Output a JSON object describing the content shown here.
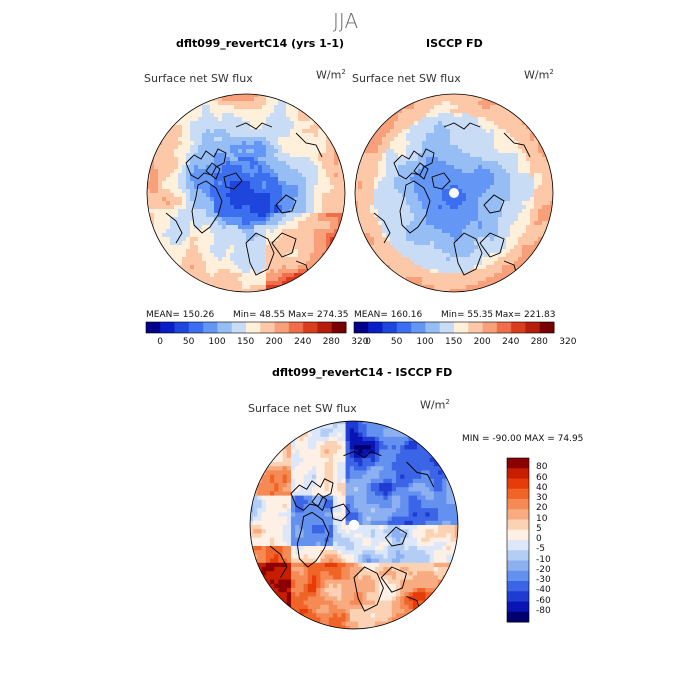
{
  "title": "JJA",
  "panels": [
    {
      "title": "dflt099_revertC14 (yrs 1-1)",
      "subtitle": "Surface net SW flux",
      "units": "W/m",
      "units_sup": "2",
      "stats": {
        "mean_label": "MEAN= 150.26",
        "min_label": "Min=  48.55",
        "max_label": "Max= 274.35"
      }
    },
    {
      "title": "ISCCP FD",
      "subtitle": "Surface net SW flux",
      "units": "W/m",
      "units_sup": "2",
      "stats": {
        "mean_label": "MEAN= 160.16",
        "min_label": "Min=  55.35",
        "max_label": "Max= 221.83"
      }
    },
    {
      "title": "dflt099_revertC14 - ISCCP FD",
      "subtitle": "Surface net SW flux",
      "units": "W/m",
      "units_sup": "2",
      "stats": {
        "minmax_label": "MIN = -90.00 MAX =  74.95"
      }
    }
  ],
  "colorbar_top": {
    "tick_labels": [
      "0",
      "50",
      "100",
      "150",
      "200",
      "240",
      "280",
      "320"
    ],
    "colors": [
      "#00008b",
      "#0a1ec8",
      "#1e46dc",
      "#3c6ef0",
      "#6496f5",
      "#96bef5",
      "#c8dcf5",
      "#fff0dc",
      "#fcc8a8",
      "#f8a07a",
      "#f06e4c",
      "#dc3c1e",
      "#b41e0a",
      "#780000"
    ]
  },
  "colorbar_diff": {
    "tick_labels": [
      "80",
      "60",
      "40",
      "30",
      "20",
      "10",
      "5",
      "0",
      "-5",
      "-10",
      "-20",
      "-30",
      "-40",
      "-60",
      "-80"
    ],
    "colors": [
      "#8b0000",
      "#c81e00",
      "#e63c0a",
      "#f06428",
      "#f58a55",
      "#f8aa80",
      "#fcd2b4",
      "#fff0e6",
      "#dce8fa",
      "#b4cdf5",
      "#8cb0f0",
      "#6490f0",
      "#3c64e6",
      "#1e3cd2",
      "#0a14b4",
      "#00006e"
    ]
  }
}
